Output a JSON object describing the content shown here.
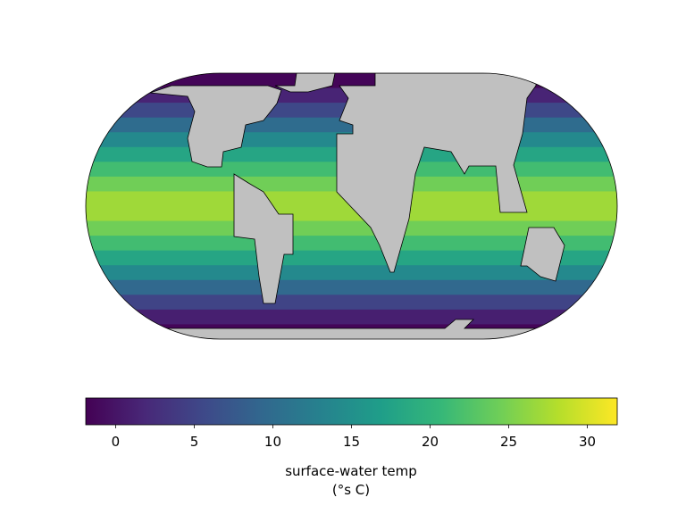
{
  "map": {
    "band_values": [
      -1.5,
      1.5,
      5.5,
      10,
      14,
      18,
      21.5,
      24.5,
      27,
      27,
      24.5,
      21.5,
      18,
      14,
      9.5,
      5,
      1,
      -1.5
    ]
  },
  "colorbar": {
    "range": [
      -1.9,
      31.9
    ],
    "ticks": [
      0,
      5,
      10,
      15,
      20,
      25,
      30
    ],
    "label_lines": [
      "surface-water temp",
      "(°s C)"
    ]
  }
}
